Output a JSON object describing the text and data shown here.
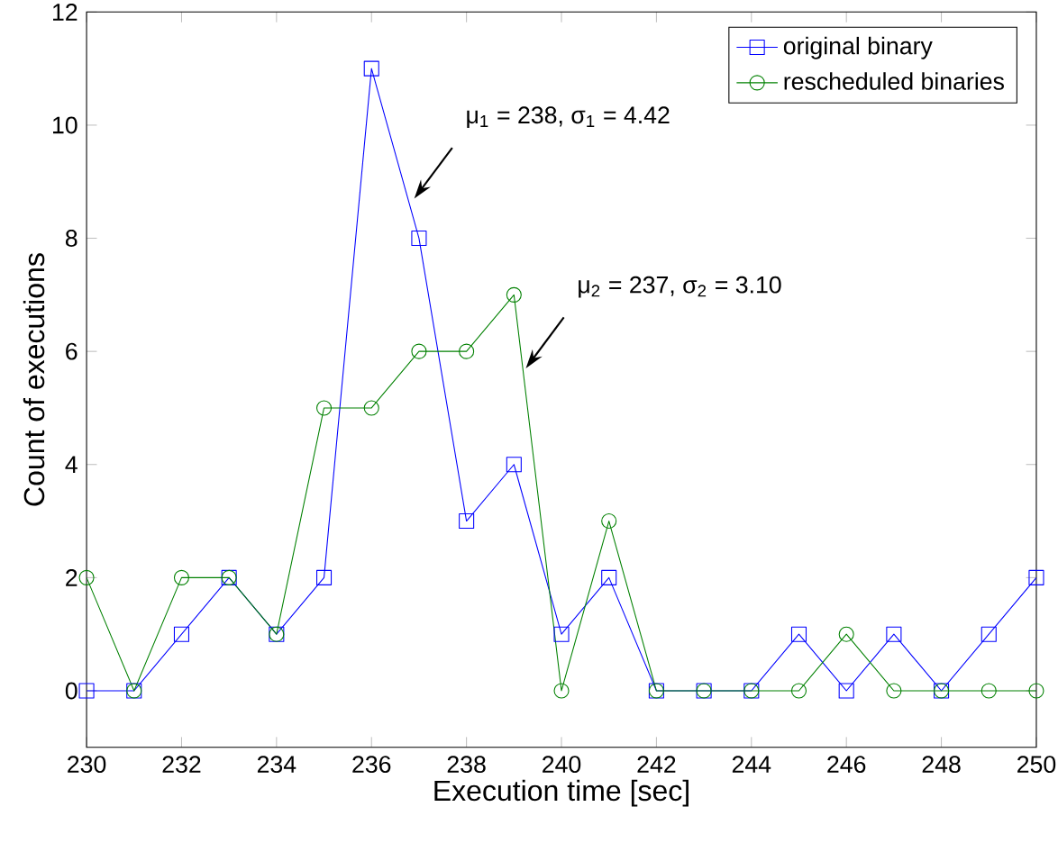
{
  "chart_data": {
    "type": "line",
    "xlabel": "Execution time [sec]",
    "ylabel": "Count of executions",
    "x": [
      230,
      231,
      232,
      233,
      234,
      235,
      236,
      237,
      238,
      239,
      240,
      241,
      242,
      243,
      244,
      245,
      246,
      247,
      248,
      249,
      250
    ],
    "series": [
      {
        "name": "original binary",
        "color": "#0000ff",
        "marker": "square",
        "values": [
          0,
          0,
          1,
          2,
          1,
          2,
          11,
          8,
          3,
          4,
          1,
          2,
          0,
          0,
          0,
          1,
          0,
          1,
          0,
          1,
          2
        ]
      },
      {
        "name": "rescheduled binaries",
        "color": "#008000",
        "marker": "circle",
        "values": [
          2,
          0,
          2,
          2,
          1,
          5,
          5,
          6,
          6,
          7,
          0,
          3,
          0,
          0,
          0,
          0,
          1,
          0,
          0,
          0,
          0
        ]
      }
    ],
    "xlim": [
      230,
      250
    ],
    "xticks": [
      230,
      232,
      234,
      236,
      238,
      240,
      242,
      244,
      246,
      248,
      250
    ],
    "ylim": [
      -1,
      12
    ],
    "yticks": [
      0,
      2,
      4,
      6,
      8,
      10,
      12
    ],
    "legend": "top right",
    "grid": false,
    "annotations": [
      {
        "text": "μ$_{1}$ = 238, σ$_{1}$ = 4.42",
        "x": 236.9,
        "y": 8.7
      },
      {
        "text": "μ$_{2}$ = 237, σ$_{2}$ = 3.10",
        "x": 239.25,
        "y": 5.7
      }
    ]
  }
}
